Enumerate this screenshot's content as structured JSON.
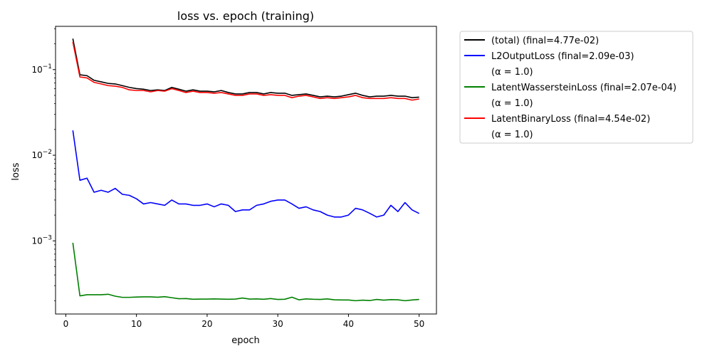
{
  "chart_data": {
    "type": "line",
    "title": "loss vs. epoch (training)",
    "xlabel": "epoch",
    "ylabel": "loss",
    "yscale": "log",
    "xlim": [
      -1.45,
      52.45
    ],
    "ylim": [
      0.00014,
      0.32
    ],
    "x_ticks": [
      0,
      10,
      20,
      30,
      40,
      50
    ],
    "x_tick_labels": [
      "0",
      "10",
      "20",
      "30",
      "40",
      "50"
    ],
    "y_ticks": [
      0.001,
      0.01,
      0.1
    ],
    "y_tick_labels": [
      "10",
      "10",
      "10"
    ],
    "y_tick_exponents": [
      "−3",
      "−2",
      "−1"
    ],
    "grid": false,
    "legend_position": "outside-upper-right",
    "x": [
      1,
      2,
      3,
      4,
      5,
      6,
      7,
      8,
      9,
      10,
      11,
      12,
      13,
      14,
      15,
      16,
      17,
      18,
      19,
      20,
      21,
      22,
      23,
      24,
      25,
      26,
      27,
      28,
      29,
      30,
      31,
      32,
      33,
      34,
      35,
      36,
      37,
      38,
      39,
      40,
      41,
      42,
      43,
      44,
      45,
      46,
      47,
      48,
      49,
      50
    ],
    "series": [
      {
        "name": "(total)      (final=4.77e-02)",
        "color": "#000000",
        "values": [
          0.23,
          0.087,
          0.085,
          0.075,
          0.072,
          0.069,
          0.068,
          0.065,
          0.062,
          0.06,
          0.059,
          0.057,
          0.058,
          0.057,
          0.062,
          0.059,
          0.056,
          0.058,
          0.056,
          0.056,
          0.055,
          0.057,
          0.054,
          0.052,
          0.052,
          0.054,
          0.054,
          0.052,
          0.054,
          0.053,
          0.053,
          0.05,
          0.051,
          0.052,
          0.05,
          0.048,
          0.049,
          0.048,
          0.049,
          0.051,
          0.053,
          0.05,
          0.048,
          0.049,
          0.049,
          0.05,
          0.049,
          0.049,
          0.047,
          0.0477
        ]
      },
      {
        "name": "L2OutputLoss (final=2.09e-03)",
        "sublabel": "(α = 1.0)",
        "color": "#0000ff",
        "values": [
          0.0195,
          0.0051,
          0.0054,
          0.0037,
          0.0039,
          0.0037,
          0.0041,
          0.0035,
          0.0034,
          0.0031,
          0.0027,
          0.0028,
          0.0027,
          0.0026,
          0.003,
          0.0027,
          0.0027,
          0.0026,
          0.0026,
          0.0027,
          0.0025,
          0.0027,
          0.0026,
          0.0022,
          0.0023,
          0.0023,
          0.0026,
          0.0027,
          0.0029,
          0.003,
          0.003,
          0.0027,
          0.0024,
          0.0025,
          0.0023,
          0.0022,
          0.002,
          0.0019,
          0.0019,
          0.002,
          0.0024,
          0.0023,
          0.0021,
          0.0019,
          0.002,
          0.0026,
          0.0022,
          0.0028,
          0.0023,
          0.00209
        ]
      },
      {
        "name": "LatentWassersteinLoss (final=2.07e-04)",
        "sublabel": "(α = 1.0)",
        "color": "#008000",
        "values": [
          0.00095,
          0.000228,
          0.000235,
          0.000235,
          0.000235,
          0.000238,
          0.000226,
          0.000219,
          0.000219,
          0.000221,
          0.000222,
          0.000222,
          0.00022,
          0.000223,
          0.000217,
          0.000211,
          0.000212,
          0.000208,
          0.000209,
          0.000209,
          0.00021,
          0.000209,
          0.000208,
          0.000209,
          0.000215,
          0.000209,
          0.00021,
          0.000208,
          0.000212,
          0.000207,
          0.000208,
          0.00022,
          0.000205,
          0.00021,
          0.000208,
          0.000207,
          0.00021,
          0.000205,
          0.000204,
          0.000204,
          0.0002,
          0.000203,
          0.000201,
          0.000207,
          0.000203,
          0.000206,
          0.000205,
          0.0002,
          0.000204,
          0.000207
        ]
      },
      {
        "name": "LatentBinaryLoss (final=4.54e-02)",
        "sublabel": "(α = 1.0)",
        "color": "#ff0000",
        "values": [
          0.21,
          0.082,
          0.08,
          0.071,
          0.068,
          0.065,
          0.064,
          0.062,
          0.058,
          0.057,
          0.057,
          0.055,
          0.057,
          0.056,
          0.06,
          0.057,
          0.054,
          0.056,
          0.054,
          0.054,
          0.053,
          0.054,
          0.052,
          0.05,
          0.05,
          0.052,
          0.052,
          0.05,
          0.051,
          0.05,
          0.05,
          0.047,
          0.049,
          0.05,
          0.048,
          0.046,
          0.047,
          0.046,
          0.047,
          0.048,
          0.05,
          0.047,
          0.046,
          0.046,
          0.046,
          0.047,
          0.046,
          0.046,
          0.044,
          0.0454
        ]
      }
    ]
  }
}
